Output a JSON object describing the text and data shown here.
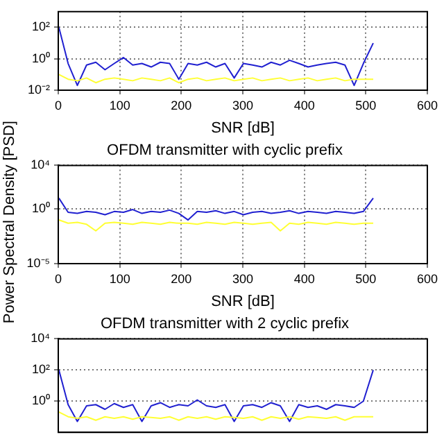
{
  "chart_data": [
    {
      "type": "line",
      "xlabel": "SNR [dB]",
      "x": [
        1,
        16,
        31,
        46,
        61,
        76,
        91,
        106,
        121,
        136,
        151,
        166,
        181,
        196,
        211,
        226,
        241,
        256,
        271,
        286,
        301,
        316,
        331,
        346,
        361,
        376,
        391,
        406,
        421,
        436,
        451,
        466,
        481,
        496,
        512
      ],
      "xlim": [
        0,
        600
      ],
      "xticks": [
        0,
        100,
        200,
        300,
        400,
        500,
        600
      ],
      "ylim": [
        0.01,
        1000
      ],
      "yticks": [
        {
          "value": 0.01,
          "label": "10⁻²"
        },
        {
          "value": 1,
          "label": "10⁰"
        },
        {
          "value": 100,
          "label": "10²"
        }
      ],
      "log": "y",
      "grid": true,
      "marker": "none",
      "line_style": "solid",
      "series": [
        {
          "color": "#ffff33",
          "values": [
            0.1,
            0.05,
            0.04,
            0.06,
            0.03,
            0.05,
            0.06,
            0.05,
            0.04,
            0.06,
            0.05,
            0.04,
            0.06,
            0.03,
            0.05,
            0.06,
            0.04,
            0.05,
            0.06,
            0.04,
            0.05,
            0.06,
            0.04,
            0.05,
            0.06,
            0.04,
            0.05,
            0.06,
            0.04,
            0.05,
            0.06,
            0.04,
            0.05,
            0.05,
            0.05
          ]
        },
        {
          "color": "#2020d0",
          "values": [
            100,
            0.5,
            0.02,
            0.4,
            0.6,
            0.2,
            0.5,
            1.2,
            0.4,
            0.5,
            0.3,
            0.6,
            0.5,
            0.05,
            0.5,
            0.4,
            0.6,
            0.3,
            0.5,
            0.06,
            0.5,
            0.4,
            0.3,
            0.6,
            0.4,
            0.8,
            0.5,
            0.3,
            0.4,
            0.5,
            0.6,
            0.4,
            0.02,
            0.5,
            10
          ]
        }
      ]
    },
    {
      "type": "line",
      "title": "OFDM transmitter with cyclic prefix",
      "xlabel": "SNR [dB]",
      "ylabel": "Power Spectral Density [PSD]",
      "x": [
        1,
        16,
        31,
        46,
        61,
        76,
        91,
        106,
        121,
        136,
        151,
        166,
        181,
        196,
        211,
        226,
        241,
        256,
        271,
        286,
        301,
        316,
        331,
        346,
        361,
        376,
        391,
        406,
        421,
        436,
        451,
        466,
        481,
        496,
        512
      ],
      "xlim": [
        0,
        600
      ],
      "xticks": [
        0,
        100,
        200,
        300,
        400,
        500,
        600
      ],
      "ylim": [
        1e-05,
        10000
      ],
      "yticks": [
        {
          "value": 1e-05,
          "label": "10⁻⁵"
        },
        {
          "value": 1,
          "label": "10⁰"
        },
        {
          "value": 10000,
          "label": "10⁴"
        }
      ],
      "log": "y",
      "grid": true,
      "marker": "none",
      "line_style": "solid",
      "series": [
        {
          "color": "#ffff33",
          "values": [
            0.1,
            0.05,
            0.06,
            0.04,
            0.01,
            0.05,
            0.06,
            0.05,
            0.04,
            0.06,
            0.05,
            0.04,
            0.06,
            0.05,
            0.05,
            0.04,
            0.06,
            0.05,
            0.04,
            0.06,
            0.05,
            0.04,
            0.05,
            0.06,
            0.01,
            0.05,
            0.04,
            0.06,
            0.05,
            0.04,
            0.06,
            0.05,
            0.04,
            0.05,
            0.05
          ]
        },
        {
          "color": "#2020d0",
          "values": [
            10,
            0.5,
            0.4,
            0.6,
            0.5,
            0.3,
            0.6,
            0.5,
            0.9,
            0.4,
            0.6,
            0.5,
            0.8,
            0.4,
            0.1,
            0.6,
            0.5,
            0.7,
            0.4,
            0.6,
            0.3,
            0.5,
            0.6,
            0.4,
            0.5,
            0.7,
            0.4,
            0.6,
            0.5,
            0.4,
            0.6,
            0.5,
            0.4,
            0.6,
            10
          ]
        }
      ]
    },
    {
      "type": "line",
      "title": "OFDM transmitter with 2 cyclic prefix",
      "x": [
        1,
        16,
        31,
        46,
        61,
        76,
        91,
        106,
        121,
        136,
        151,
        166,
        181,
        196,
        211,
        226,
        241,
        256,
        271,
        286,
        301,
        316,
        331,
        346,
        361,
        376,
        391,
        406,
        421,
        436,
        451,
        466,
        481,
        496,
        512
      ],
      "xlim": [
        0,
        600
      ],
      "ylim": [
        0.01,
        10000
      ],
      "yticks": [
        {
          "value": 1,
          "label": "10⁰"
        },
        {
          "value": 100,
          "label": "10²"
        },
        {
          "value": 10000,
          "label": "10⁴"
        }
      ],
      "log": "y",
      "grid": true,
      "tick_labels": "y",
      "marker": "none",
      "line_style": "solid",
      "series": [
        {
          "color": "#ffff33",
          "values": [
            0.2,
            0.1,
            0.08,
            0.1,
            0.06,
            0.1,
            0.08,
            0.1,
            0.07,
            0.1,
            0.09,
            0.08,
            0.1,
            0.06,
            0.1,
            0.08,
            0.1,
            0.07,
            0.1,
            0.09,
            0.08,
            0.1,
            0.06,
            0.1,
            0.08,
            0.1,
            0.07,
            0.1,
            0.09,
            0.08,
            0.1,
            0.06,
            0.1,
            0.1,
            0.1
          ]
        },
        {
          "color": "#2020d0",
          "values": [
            100,
            0.6,
            0.05,
            0.5,
            0.6,
            0.3,
            0.7,
            0.4,
            0.6,
            0.05,
            0.5,
            0.8,
            0.4,
            0.6,
            0.5,
            1.2,
            0.5,
            0.4,
            0.6,
            0.05,
            0.5,
            0.6,
            0.4,
            0.8,
            0.5,
            0.05,
            0.6,
            0.4,
            0.5,
            0.3,
            0.6,
            0.5,
            0.4,
            1,
            100
          ]
        }
      ]
    }
  ]
}
